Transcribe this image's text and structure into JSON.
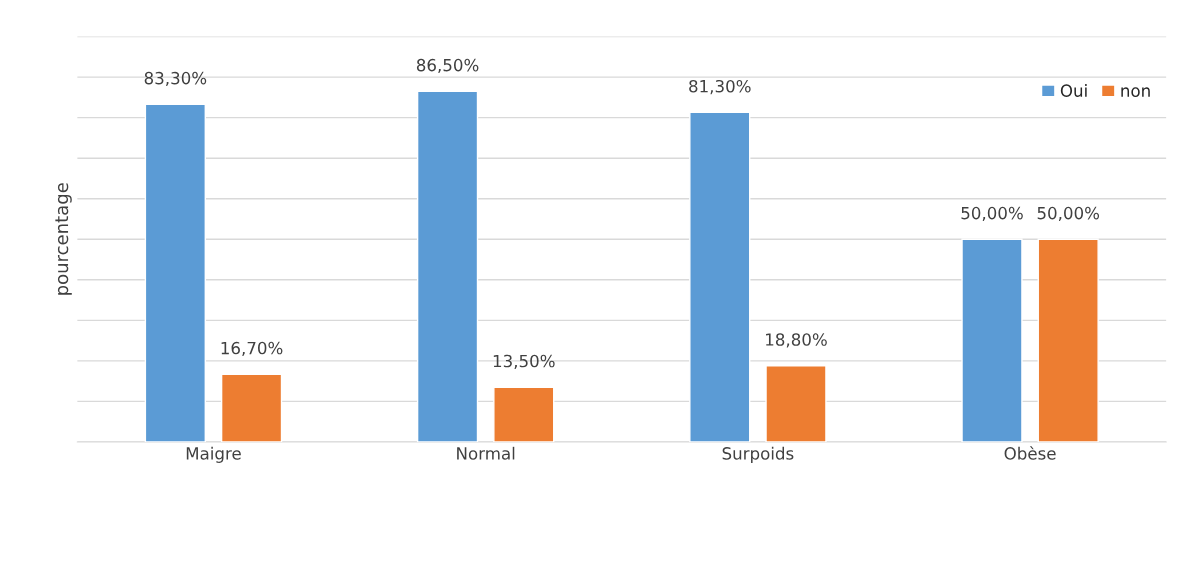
{
  "chart_data": {
    "type": "bar",
    "ylabel": "pourcentage",
    "categories": [
      "Maigre",
      "Normal",
      "Surpoids",
      "Obèse"
    ],
    "series": [
      {
        "name": "Oui",
        "color": "#5b9bd5",
        "values": [
          83.3,
          86.5,
          81.3,
          50.0
        ],
        "value_labels": [
          "83,30%",
          "86,50%",
          "81,30%",
          "50,00%"
        ]
      },
      {
        "name": "non",
        "color": "#ed7d31",
        "values": [
          16.7,
          13.5,
          18.8,
          50.0
        ],
        "value_labels": [
          "16,70%",
          "13,50%",
          "18,80%",
          "50,00%"
        ]
      }
    ],
    "ylim": [
      0,
      100
    ],
    "yticks": [
      {
        "value": 0,
        "label": null
      },
      {
        "value": 10,
        "label": null
      },
      {
        "value": 20,
        "label": null
      },
      {
        "value": 30,
        "label": null
      },
      {
        "value": 40,
        "label": null
      },
      {
        "value": 50,
        "label": null
      },
      {
        "value": 60,
        "label": null
      },
      {
        "value": 70,
        "label": null
      },
      {
        "value": 80,
        "label": null
      },
      {
        "value": 90,
        "label": null
      },
      {
        "value": 100,
        "label": null
      }
    ],
    "tick_labels": "x",
    "grid": "y",
    "legend": "top right"
  }
}
